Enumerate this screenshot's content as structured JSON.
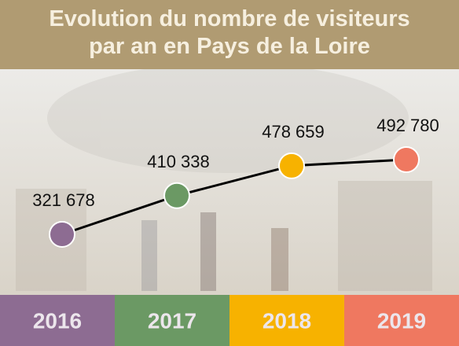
{
  "chart_data": {
    "type": "line",
    "title": [
      "Evolution du nombre de visiteurs",
      "par an en Pays de la Loire"
    ],
    "categories": [
      "2016",
      "2017",
      "2018",
      "2019"
    ],
    "values": [
      321678,
      410338,
      478659,
      492780
    ],
    "value_labels": [
      "321 678",
      "410 338",
      "478 659",
      "492 780"
    ],
    "colors": [
      "#8d6c92",
      "#6b9964",
      "#f7b200",
      "#ef7860"
    ],
    "line_color": "#000000"
  }
}
